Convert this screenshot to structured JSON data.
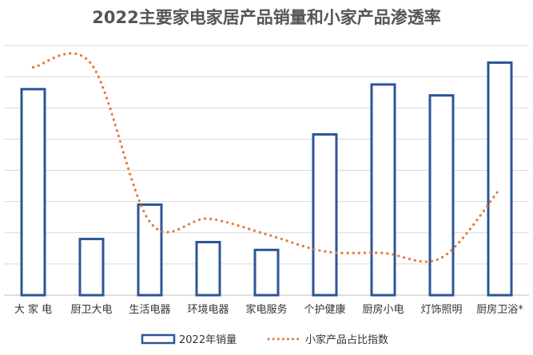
{
  "chart_data": {
    "title": "2022主要家电家居产品销量和小家产品渗透率",
    "type": "bar",
    "categories": [
      "大 家 电",
      "厨卫大电",
      "生活电器",
      "环境电器",
      "家电服务",
      "个护健康",
      "厨房小电",
      "灯饰照明",
      "厨房卫浴*"
    ],
    "series": [
      {
        "name": "2022年销量",
        "type": "bar",
        "color": "#2E5597",
        "values": [
          6.6,
          1.8,
          2.9,
          1.7,
          1.45,
          5.15,
          6.75,
          6.4,
          7.45
        ]
      },
      {
        "name": "小家产品占比指数",
        "type": "line",
        "style": "dotted",
        "smooth": true,
        "color": "#E07B39",
        "values": [
          7.3,
          7.4,
          2.35,
          2.45,
          1.95,
          1.4,
          1.35,
          1.2,
          3.4
        ]
      }
    ],
    "ylim": [
      0,
      8
    ],
    "y_gridlines": 8,
    "grid": true,
    "y_tick_labels_visible": false,
    "legend_position": "bottom"
  }
}
